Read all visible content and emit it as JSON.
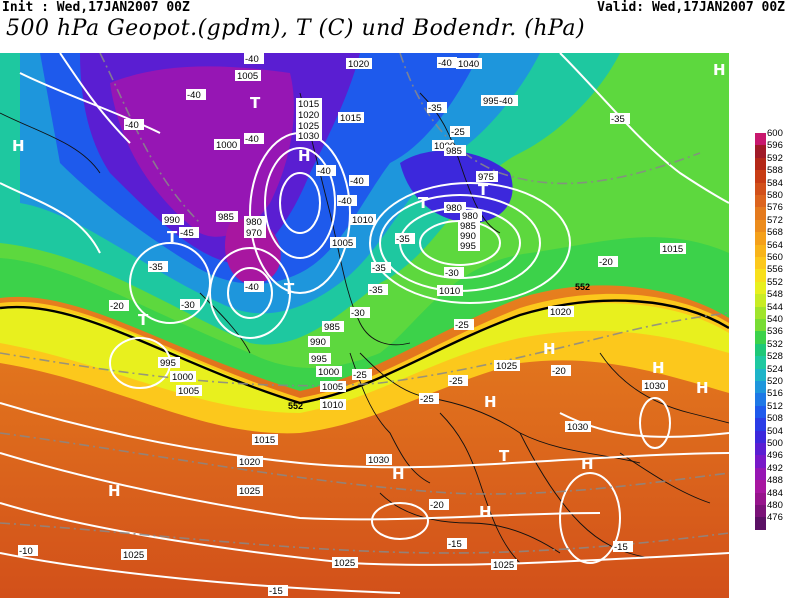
{
  "header": {
    "init": "Init : Wed,17JAN2007 00Z",
    "valid": "Valid: Wed,17JAN2007 00Z",
    "title": "500 hPa Geopot.(gpdm), T (C) und Bodendr. (hPa)"
  },
  "legend": {
    "levels": [
      "600",
      "596",
      "592",
      "588",
      "584",
      "580",
      "576",
      "572",
      "568",
      "564",
      "560",
      "556",
      "552",
      "548",
      "544",
      "540",
      "536",
      "532",
      "528",
      "524",
      "520",
      "516",
      "512",
      "508",
      "504",
      "500",
      "496",
      "492",
      "488",
      "484",
      "480",
      "476"
    ],
    "colors": [
      "#c8186e",
      "#a01a28",
      "#b42818",
      "#c83c14",
      "#d2501a",
      "#dc641e",
      "#e47a1e",
      "#ec8c1c",
      "#f4a01a",
      "#f8b41a",
      "#fcc81c",
      "#f8e01c",
      "#e8f01e",
      "#c8ec24",
      "#a0e42c",
      "#78dc34",
      "#3cd24a",
      "#1ec878",
      "#1ec8a0",
      "#1eb4c8",
      "#1e96dc",
      "#1e78e6",
      "#1e5aec",
      "#2a3ce6",
      "#3c28dc",
      "#5a1ed2",
      "#7818c8",
      "#9616b4",
      "#a816a0",
      "#96148c",
      "#7a1278",
      "#5a1064"
    ]
  },
  "map": {
    "pressure_labels": [
      "1005",
      "1020",
      "1040",
      "1000",
      "995",
      "1015",
      "1020",
      "1025",
      "1030",
      "1015",
      "1000",
      "985",
      "975",
      "980",
      "990",
      "985",
      "980",
      "970",
      "1010",
      "1005",
      "995",
      "985",
      "990",
      "980",
      "985",
      "990",
      "995",
      "1000",
      "1005",
      "1010",
      "995",
      "1000",
      "1005",
      "1010",
      "1020",
      "1025",
      "1015",
      "1020",
      "1025",
      "1030",
      "1030",
      "1030",
      "1025",
      "1025",
      "1015",
      "1025"
    ],
    "temp_labels": [
      "-40",
      "-40",
      "-40",
      "-40",
      "-35",
      "-35",
      "-40",
      "-40",
      "-40",
      "-40",
      "-45",
      "-40",
      "-35",
      "-30",
      "-25",
      "-20",
      "-30",
      "-35",
      "-30",
      "-25",
      "-25",
      "-25",
      "-20",
      "-25",
      "-20",
      "-20",
      "-15",
      "-15",
      "-10",
      "-15",
      "-35",
      "-35",
      "-40"
    ],
    "centers": [
      "H",
      "T",
      "H",
      "T",
      "T",
      "T",
      "T",
      "T",
      "H",
      "H",
      "T",
      "H",
      "H",
      "H",
      "H",
      "H",
      "H",
      "H"
    ],
    "isoline_552": "552",
    "isoline_552b": "552"
  }
}
